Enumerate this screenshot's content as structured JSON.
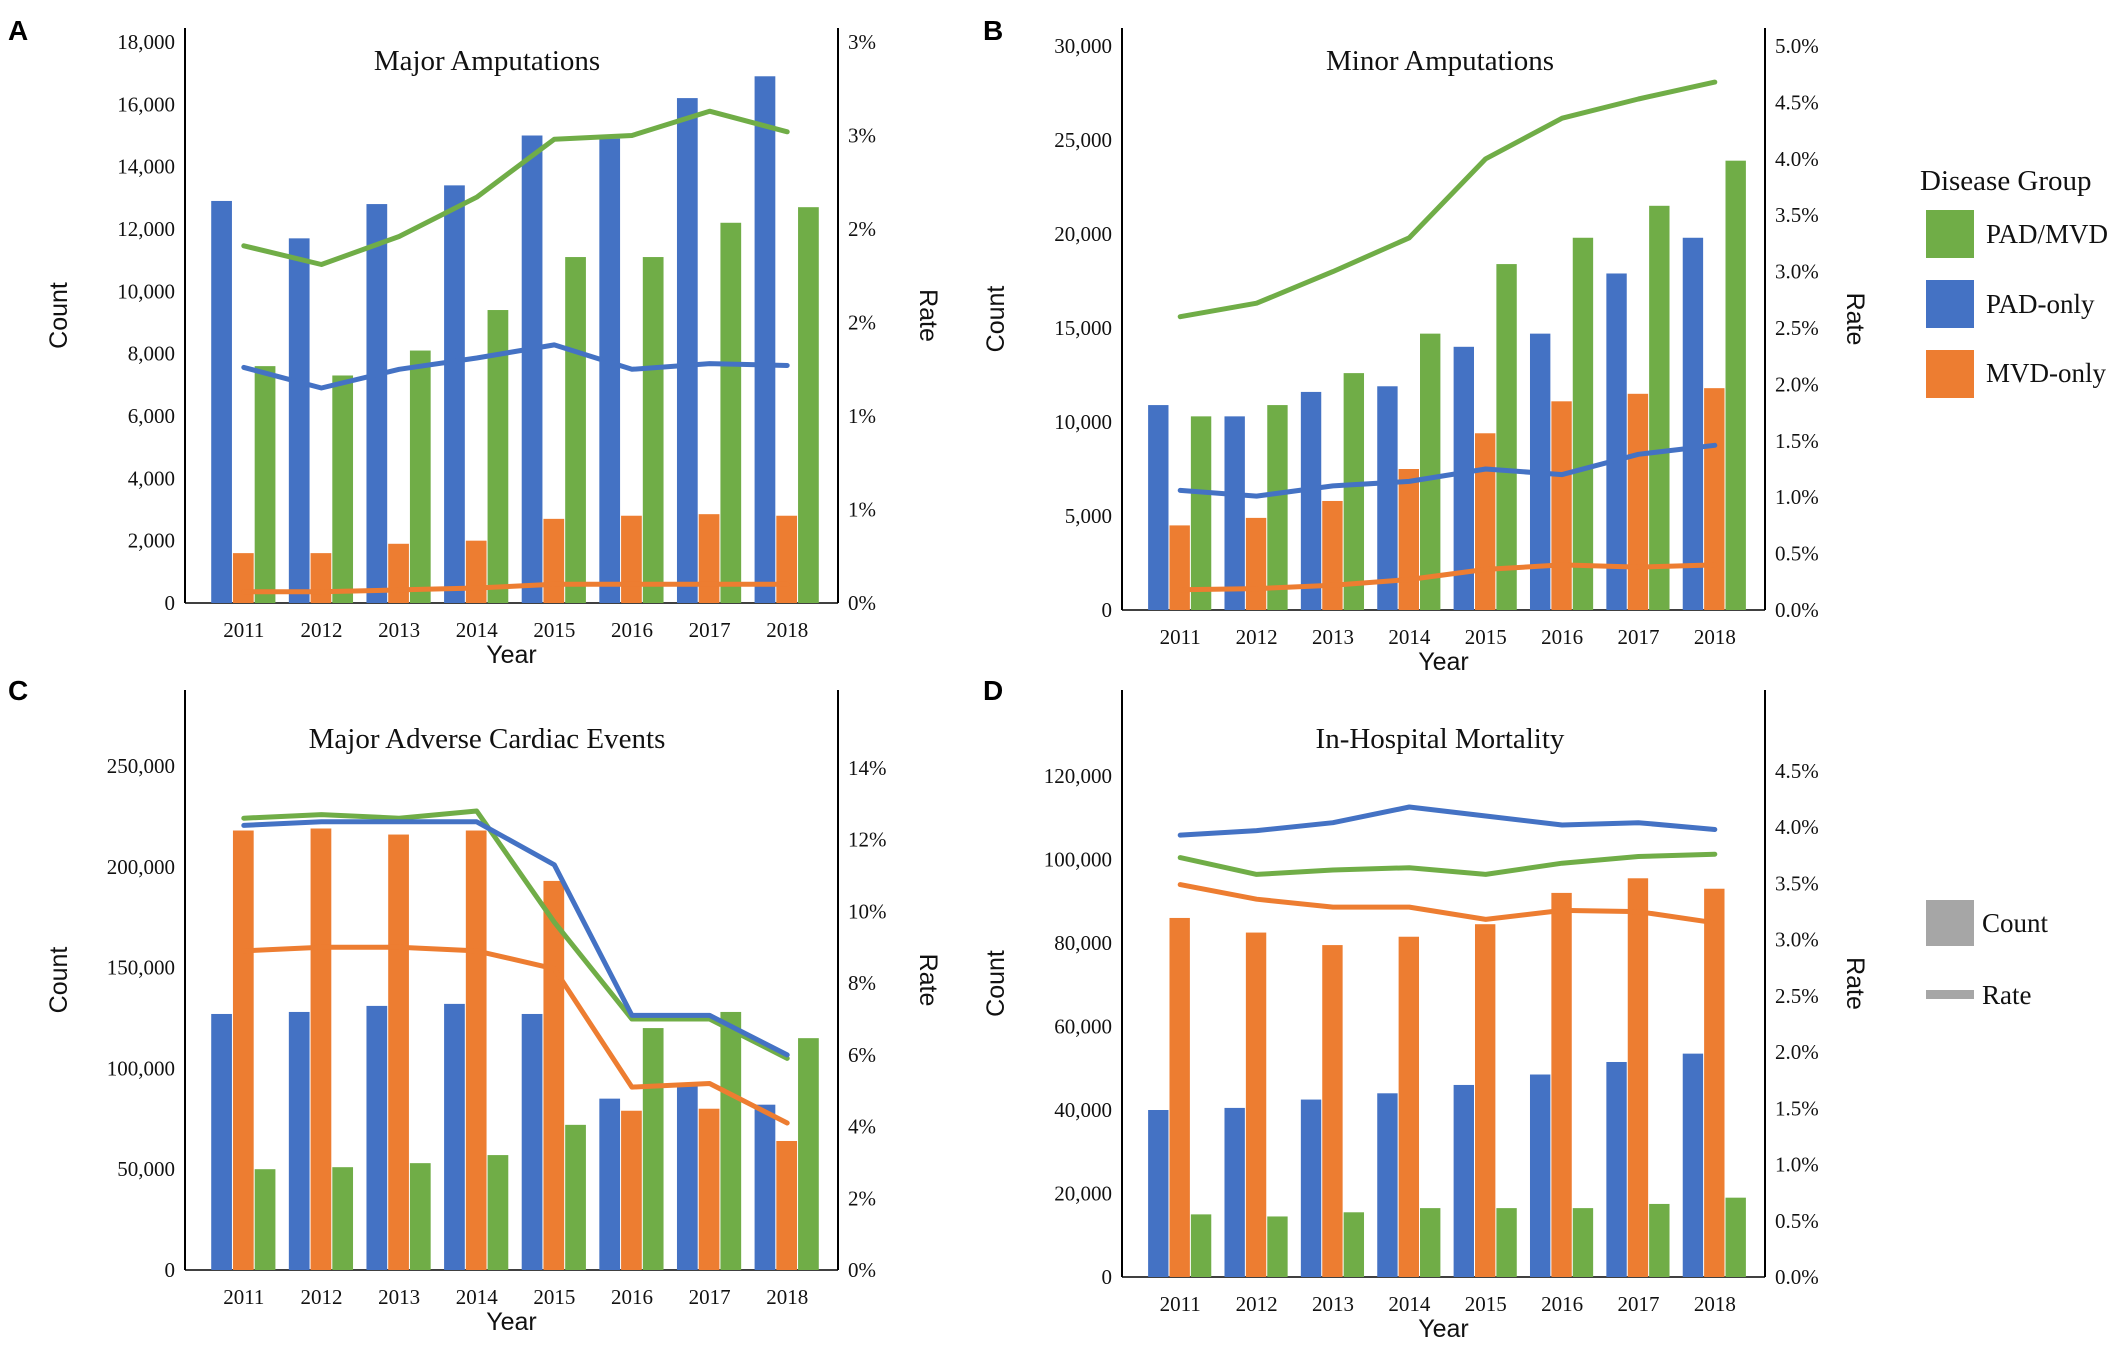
{
  "colors": {
    "PAD/MVD": "#70ad47",
    "PAD-only": "#4472c4",
    "MVD-only": "#ed7d31",
    "neutral": "#a6a6a6"
  },
  "legend": {
    "title": "Disease Group",
    "groups": [
      {
        "label": "PAD/MVD",
        "key": "PAD/MVD"
      },
      {
        "label": "PAD-only",
        "key": "PAD-only"
      },
      {
        "label": "MVD-only",
        "key": "MVD-only"
      }
    ],
    "count_label": "Count",
    "rate_label": "Rate"
  },
  "chart_data": [
    {
      "id": "A",
      "type": "bar+line",
      "title": "Major Amputations",
      "xlabel": "Year",
      "ylabel": "Count",
      "y2label": "Rate",
      "categories": [
        "2011",
        "2012",
        "2013",
        "2014",
        "2015",
        "2016",
        "2017",
        "2018"
      ],
      "ylim": [
        0,
        18000
      ],
      "yticks": [
        "0",
        "2,000",
        "4,000",
        "6,000",
        "8,000",
        "10,000",
        "12,000",
        "14,000",
        "16,000",
        "18,000"
      ],
      "y2lim": [
        0,
        3
      ],
      "y2ticks": [
        "0%",
        "1%",
        "1%",
        "2%",
        "2%",
        "3%",
        "3%"
      ],
      "bar_series": [
        {
          "key": "PAD-only",
          "values": [
            12900,
            11700,
            12800,
            13400,
            15000,
            14900,
            16200,
            16900
          ]
        },
        {
          "key": "MVD-only",
          "values": [
            1600,
            1600,
            1900,
            2000,
            2700,
            2800,
            2850,
            2800
          ]
        },
        {
          "key": "PAD/MVD",
          "values": [
            7600,
            7300,
            8100,
            9400,
            11100,
            11100,
            12200,
            12700
          ]
        }
      ],
      "rate_series": [
        {
          "key": "PAD/MVD",
          "values": [
            1.91,
            1.81,
            1.96,
            2.17,
            2.48,
            2.5,
            2.63,
            2.52
          ]
        },
        {
          "key": "PAD-only",
          "values": [
            1.26,
            1.15,
            1.25,
            1.31,
            1.38,
            1.25,
            1.28,
            1.27
          ]
        },
        {
          "key": "MVD-only",
          "values": [
            0.06,
            0.06,
            0.07,
            0.08,
            0.1,
            0.1,
            0.1,
            0.1
          ]
        }
      ]
    },
    {
      "id": "B",
      "type": "bar+line",
      "title": "Minor Amputations",
      "xlabel": "Year",
      "ylabel": "Count",
      "y2label": "Rate",
      "categories": [
        "2011",
        "2012",
        "2013",
        "2014",
        "2015",
        "2016",
        "2017",
        "2018"
      ],
      "ylim": [
        0,
        30000
      ],
      "yticks": [
        "0",
        "5,000",
        "10,000",
        "15,000",
        "20,000",
        "25,000",
        "30,000"
      ],
      "y2lim": [
        0,
        5
      ],
      "y2ticks": [
        "0.0%",
        "0.5%",
        "1.0%",
        "1.5%",
        "2.0%",
        "2.5%",
        "3.0%",
        "3.5%",
        "4.0%",
        "4.5%",
        "5.0%"
      ],
      "bar_series": [
        {
          "key": "PAD-only",
          "values": [
            10900,
            10300,
            11600,
            11900,
            14000,
            14700,
            17900,
            19800
          ]
        },
        {
          "key": "MVD-only",
          "values": [
            4500,
            4900,
            5800,
            7500,
            9400,
            11100,
            11500,
            11800
          ]
        },
        {
          "key": "PAD/MVD",
          "values": [
            10300,
            10900,
            12600,
            14700,
            18400,
            19800,
            21500,
            23900
          ]
        }
      ],
      "rate_series": [
        {
          "key": "PAD/MVD",
          "values": [
            2.6,
            2.72,
            3.0,
            3.3,
            4.0,
            4.36,
            4.53,
            4.68
          ]
        },
        {
          "key": "PAD-only",
          "values": [
            1.06,
            1.01,
            1.1,
            1.14,
            1.25,
            1.2,
            1.38,
            1.46
          ]
        },
        {
          "key": "MVD-only",
          "values": [
            0.18,
            0.19,
            0.22,
            0.27,
            0.36,
            0.4,
            0.38,
            0.4
          ]
        }
      ]
    },
    {
      "id": "C",
      "type": "bar+line",
      "title": "Major Adverse Cardiac Events",
      "xlabel": "Year",
      "ylabel": "Count",
      "y2label": "Rate",
      "categories": [
        "2011",
        "2012",
        "2013",
        "2014",
        "2015",
        "2016",
        "2017",
        "2018"
      ],
      "ylim": [
        0,
        250000
      ],
      "yticks": [
        "0",
        "50,000",
        "100,000",
        "150,000",
        "200,000",
        "250,000"
      ],
      "y2lim": [
        0,
        14
      ],
      "y2ticks": [
        "0%",
        "2%",
        "4%",
        "6%",
        "8%",
        "10%",
        "12%",
        "14%"
      ],
      "bar_series": [
        {
          "key": "PAD-only",
          "values": [
            127000,
            128000,
            131000,
            132000,
            127000,
            85000,
            93000,
            82000
          ]
        },
        {
          "key": "MVD-only",
          "values": [
            218000,
            219000,
            216000,
            218000,
            193000,
            79000,
            80000,
            64000
          ]
        },
        {
          "key": "PAD/MVD",
          "values": [
            50000,
            51000,
            53000,
            57000,
            72000,
            120000,
            128000,
            115000
          ]
        }
      ],
      "rate_series": [
        {
          "key": "PAD/MVD",
          "values": [
            12.6,
            12.7,
            12.6,
            12.8,
            9.7,
            7.0,
            7.0,
            5.9
          ]
        },
        {
          "key": "PAD-only",
          "values": [
            12.4,
            12.5,
            12.5,
            12.5,
            11.3,
            7.1,
            7.1,
            6.0
          ]
        },
        {
          "key": "MVD-only",
          "values": [
            8.9,
            9.0,
            9.0,
            8.9,
            8.4,
            5.1,
            5.2,
            4.1
          ]
        }
      ]
    },
    {
      "id": "D",
      "type": "bar+line",
      "title": "In-Hospital Mortality",
      "xlabel": "Year",
      "ylabel": "Count",
      "y2label": "Rate",
      "categories": [
        "2011",
        "2012",
        "2013",
        "2014",
        "2015",
        "2016",
        "2017",
        "2018"
      ],
      "ylim": [
        0,
        120000
      ],
      "yticks": [
        "0",
        "20,000",
        "40,000",
        "60,000",
        "80,000",
        "100,000",
        "120,000"
      ],
      "y2lim": [
        0,
        4.5
      ],
      "y2ticks": [
        "0.0%",
        "0.5%",
        "1.0%",
        "1.5%",
        "2.0%",
        "2.5%",
        "3.0%",
        "3.5%",
        "4.0%",
        "4.5%"
      ],
      "bar_series": [
        {
          "key": "PAD-only",
          "values": [
            40000,
            40500,
            42500,
            44000,
            46000,
            48500,
            51500,
            53500
          ]
        },
        {
          "key": "MVD-only",
          "values": [
            86000,
            82500,
            79500,
            81500,
            84500,
            92000,
            95500,
            93000
          ]
        },
        {
          "key": "PAD/MVD",
          "values": [
            15000,
            14500,
            15500,
            16500,
            16500,
            16500,
            17500,
            19000
          ]
        }
      ],
      "rate_series": [
        {
          "key": "PAD-only",
          "values": [
            3.93,
            3.97,
            4.04,
            4.18,
            4.1,
            4.02,
            4.04,
            3.98
          ]
        },
        {
          "key": "PAD/MVD",
          "values": [
            3.73,
            3.58,
            3.62,
            3.64,
            3.58,
            3.68,
            3.74,
            3.76
          ]
        },
        {
          "key": "MVD-only",
          "values": [
            3.49,
            3.36,
            3.29,
            3.29,
            3.18,
            3.26,
            3.25,
            3.15
          ]
        }
      ]
    }
  ]
}
